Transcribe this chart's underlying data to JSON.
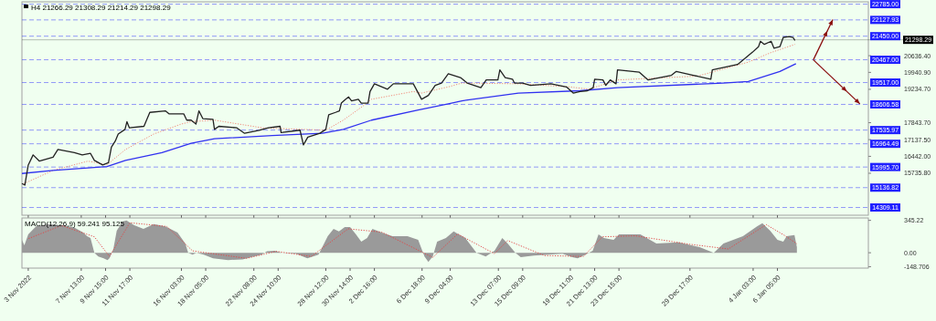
{
  "chart_data": [
    {
      "type": "line",
      "title": "H4 21266.29 21308.29 21214.29 21298.29",
      "tick_labels": "y",
      "xlim": [
        "2022-11-02T11:00",
        "2023-01-14T00:00"
      ],
      "xticks": [
        {
          "value": "2022-11-03T00:00",
          "label": null
        },
        {
          "value": "2022-11-07T13:00",
          "label": null
        },
        {
          "value": "2022-11-09T15:00",
          "label": null
        },
        {
          "value": "2022-11-11T17:00",
          "label": null
        },
        {
          "value": "2022-11-16T03:00",
          "label": null
        },
        {
          "value": "2022-11-18T05:00",
          "label": null
        },
        {
          "value": "2022-11-22T08:00",
          "label": null
        },
        {
          "value": "2022-11-24T10:00",
          "label": null
        },
        {
          "value": "2022-11-28T12:00",
          "label": null
        },
        {
          "value": "2022-11-30T14:00",
          "label": null
        },
        {
          "value": "2022-12-02T16:00",
          "label": null
        },
        {
          "value": "2022-12-06T18:00",
          "label": null
        },
        {
          "value": "2022-12-09T04:00",
          "label": null
        },
        {
          "value": "2022-12-13T07:00",
          "label": null
        },
        {
          "value": "2022-12-15T09:00",
          "label": null
        },
        {
          "value": "2022-12-19T11:00",
          "label": null
        },
        {
          "value": "2022-12-21T13:00",
          "label": null
        },
        {
          "value": "2022-12-23T15:00",
          "label": null
        },
        {
          "value": "2022-12-29T17:00",
          "label": null
        },
        {
          "value": "2023-01-04T03:00",
          "label": null
        },
        {
          "value": "2023-01-06T05:00",
          "label": null
        }
      ],
      "ylim": [
        13987,
        22882
      ],
      "yticks": [
        {
          "value": 20636.4,
          "label": "20636.40"
        },
        {
          "value": 19940.9,
          "label": "19940.90"
        },
        {
          "value": 19234.7,
          "label": "19234.70"
        },
        {
          "value": 17843.7,
          "label": "17843.70"
        },
        {
          "value": 17137.5,
          "label": "17137.50"
        },
        {
          "value": 16442,
          "label": "16442.00"
        },
        {
          "value": 15735.8,
          "label": "15735.80"
        }
      ],
      "ref_lines": [
        {
          "axis": "y",
          "value": 22785,
          "label": "22785.00",
          "color": "#2020ff",
          "line_style": "dashed"
        },
        {
          "axis": "y",
          "value": 22127.93,
          "label": "22127.93",
          "color": "#2020ff",
          "line_style": "dashed"
        },
        {
          "axis": "y",
          "value": 21450,
          "label": "21450.00",
          "color": "#2020ff",
          "line_style": "dashed"
        },
        {
          "axis": "y",
          "value": 21298.29,
          "label": "21298.29",
          "color": "#000000",
          "line_style": "solid"
        },
        {
          "axis": "y",
          "value": 20467,
          "label": "20467.00",
          "color": "#2020ff",
          "line_style": "dashed"
        },
        {
          "axis": "y",
          "value": 19517,
          "label": "19517.00",
          "color": "#2020ff",
          "line_style": "dashed"
        },
        {
          "axis": "y",
          "value": 18606.58,
          "label": "18606.58",
          "color": "#2020ff",
          "line_style": "dashed"
        },
        {
          "axis": "y",
          "value": 17535.97,
          "label": "17535.97",
          "color": "#2020ff",
          "line_style": "dashed"
        },
        {
          "axis": "y",
          "value": 16964.49,
          "label": "16964.49",
          "color": "#2020ff",
          "line_style": "dashed"
        },
        {
          "axis": "y",
          "value": 15995.7,
          "label": "15995.70",
          "color": "#2020ff",
          "line_style": "dashed"
        },
        {
          "axis": "y",
          "value": 15136.82,
          "label": "15136.82",
          "color": "#2020ff",
          "line_style": "dashed"
        },
        {
          "axis": "y",
          "value": 14309.11,
          "label": "14309.11",
          "color": "#2020ff",
          "line_style": "dashed"
        }
      ],
      "series": [
        {
          "color": "#f08878",
          "line_style": "dotted",
          "x": [
            "2022-11-02T12:00",
            "2022-11-05T03:00",
            "2022-11-08T03:00",
            "2022-11-09T18:00",
            "2022-11-10T05:00",
            "2022-11-11T08:00",
            "2022-11-13T18:00",
            "2022-11-16T03:00",
            "2022-11-16T23:00",
            "2022-11-18T23:00",
            "2022-11-23T02:00",
            "2022-11-26T14:00",
            "2022-11-28T12:00",
            "2022-11-30T00:00",
            "2022-12-01T16:00",
            "2022-12-02T10:00",
            "2022-12-06T00:00",
            "2022-12-06T17:00",
            "2022-12-09T00:00",
            "2022-12-10T04:00",
            "2022-12-15T00:00",
            "2022-12-19T10:00",
            "2022-12-21T01:00",
            "2022-12-23T12:00",
            "2022-12-30T09:00",
            "2023-01-03T17:00",
            "2023-01-05T14:00",
            "2023-01-07T17:00"
          ],
          "values": [
            15275,
            15855,
            16242,
            16081,
            16274,
            16726,
            17370,
            17789,
            17886,
            17950,
            17628,
            17564,
            17531,
            17950,
            18530,
            18821,
            19143,
            19078,
            19336,
            19497,
            19465,
            19336,
            19240,
            19626,
            19787,
            20368,
            20754,
            21109
          ]
        },
        {
          "color": "#3030f0",
          "line_style": "solid",
          "x": [
            "2022-11-02T11:00",
            "2022-11-05T03:00",
            "2022-11-09T18:00",
            "2022-11-11T08:00",
            "2022-11-14T11:00",
            "2022-11-16T23:00",
            "2022-11-18T23:00",
            "2022-11-23T22:00",
            "2022-11-28T05:00",
            "2022-11-30T00:00",
            "2022-12-02T10:00",
            "2022-12-06T10:00",
            "2022-12-09T00:00",
            "2022-12-10T04:00",
            "2022-12-15T00:00",
            "2022-12-20T07:00",
            "2022-12-23T12:00",
            "2023-01-01T13:00",
            "2023-01-03T17:00",
            "2023-01-06T10:00",
            "2023-01-07T19:00"
          ],
          "values": [
            15726,
            15855,
            16017,
            16274,
            16597,
            16983,
            17177,
            17306,
            17402,
            17564,
            17950,
            18369,
            18627,
            18756,
            19078,
            19175,
            19304,
            19497,
            19562,
            19981,
            20303
          ]
        },
        {
          "color": "#222222",
          "line_style": "solid",
          "x": [
            "2022-11-02T11:00",
            "2022-11-02T17:00",
            "2022-11-03T00:00",
            "2022-11-03T10:00",
            "2022-11-03T23:00",
            "2022-11-05T03:00",
            "2022-11-05T13:00",
            "2022-11-06T23:00",
            "2022-11-07T15:00",
            "2022-11-08T08:00",
            "2022-11-08T16:00",
            "2022-11-09T09:00",
            "2022-11-09T21:00",
            "2022-11-10T03:00",
            "2022-11-10T11:00",
            "2022-11-10T17:00",
            "2022-11-11T07:00",
            "2022-11-11T11:00",
            "2022-11-11T16:00",
            "2022-11-12T22:00",
            "2022-11-13T10:00",
            "2022-11-14T18:00",
            "2022-11-15T02:00",
            "2022-11-16T08:00",
            "2022-11-16T14:00",
            "2022-11-16T23:00",
            "2022-11-17T09:00",
            "2022-11-17T15:00",
            "2022-11-17T23:00",
            "2022-11-18T20:00",
            "2022-11-18T23:00",
            "2022-11-19T08:00",
            "2022-11-20T21:00",
            "2022-11-21T13:00",
            "2022-11-22T19:00",
            "2022-11-23T14:00",
            "2022-11-24T14:00",
            "2022-11-24T16:00",
            "2022-11-26T07:00",
            "2022-11-26T14:00",
            "2022-11-26T23:00",
            "2022-11-28T00:00",
            "2022-11-28T12:00",
            "2022-11-28T18:00",
            "2022-11-29T08:00",
            "2022-11-29T16:00",
            "2022-11-29T20:00",
            "2022-11-30T05:00",
            "2022-11-30T11:00",
            "2022-11-30T17:00",
            "2022-12-01T07:00",
            "2022-12-01T13:00",
            "2022-12-02T03:00",
            "2022-12-02T07:00",
            "2022-12-02T16:00",
            "2022-12-03T19:00",
            "2022-12-04T07:00",
            "2022-12-06T00:00",
            "2022-12-06T17:00",
            "2022-12-07T07:00",
            "2022-12-07T21:00",
            "2022-12-08T10:00",
            "2022-12-09T00:00",
            "2022-12-10T01:00",
            "2022-12-10T15:00",
            "2022-12-11T19:00",
            "2022-12-12T06:00",
            "2022-12-13T06:00",
            "2022-12-13T10:00",
            "2022-12-13T21:00",
            "2022-12-14T12:00",
            "2022-12-14T16:00",
            "2022-12-15T09:00",
            "2022-12-16T01:00",
            "2022-12-17T19:00",
            "2022-12-19T03:00",
            "2022-12-19T17:00",
            "2022-12-20T07:00",
            "2022-12-20T22:00",
            "2022-12-21T10:00",
            "2022-12-21T13:00",
            "2022-12-22T06:00",
            "2022-12-22T12:00",
            "2022-12-22T21:00",
            "2022-12-23T09:00",
            "2022-12-23T12:00",
            "2022-12-25T09:00",
            "2022-12-26T03:00",
            "2022-12-28T03:00",
            "2022-12-28T13:00",
            "2022-12-30T00:00",
            "2022-12-31T12:00",
            "2022-12-31T15:00",
            "2023-01-01T13:00",
            "2023-01-02T19:00",
            "2023-01-04T02:00",
            "2023-01-04T14:00",
            "2023-01-04T18:00",
            "2023-01-05T02:00",
            "2023-01-05T16:00",
            "2023-01-05T22:00",
            "2023-01-06T10:00",
            "2023-01-06T17:00",
            "2023-01-07T05:00",
            "2023-01-07T13:00",
            "2023-01-07T17:00"
          ],
          "values": [
            15307,
            15243,
            16081,
            16500,
            16242,
            16403,
            16726,
            16597,
            16500,
            16564,
            16274,
            16081,
            16178,
            16822,
            17080,
            17370,
            17564,
            17886,
            17628,
            17693,
            18273,
            18337,
            18208,
            18208,
            17950,
            17950,
            17789,
            18337,
            18015,
            17983,
            17564,
            17693,
            17628,
            17402,
            17531,
            17628,
            17693,
            17435,
            17531,
            16919,
            17241,
            17402,
            17564,
            18176,
            18273,
            18337,
            18659,
            18821,
            18917,
            18756,
            18821,
            18659,
            18659,
            19143,
            19465,
            19240,
            19465,
            19465,
            18821,
            18982,
            19401,
            19497,
            19884,
            19723,
            19497,
            19304,
            19626,
            19626,
            20045,
            19723,
            19659,
            19497,
            19497,
            19401,
            19465,
            19336,
            19078,
            19143,
            19175,
            19304,
            19659,
            19626,
            19401,
            19626,
            19465,
            20045,
            19949,
            19626,
            19820,
            19981,
            19820,
            19659,
            20045,
            20142,
            20271,
            20787,
            21012,
            21238,
            21109,
            21238,
            20948,
            21012,
            21399,
            21431,
            21399,
            21270
          ]
        }
      ]
    },
    {
      "type": "area",
      "title": "MACD(12,26,9) 59.241 95.125",
      "xlim": [
        "2022-11-02T11:00",
        "2023-01-14T00:00"
      ],
      "xticks": [
        {
          "value": "2022-11-03T00:00",
          "label": "3 Nov 2022"
        },
        {
          "value": "2022-11-07T13:00",
          "label": "7 Nov 13:00"
        },
        {
          "value": "2022-11-09T15:00",
          "label": "9 Nov 15:00"
        },
        {
          "value": "2022-11-11T17:00",
          "label": "11 Nov 17:00"
        },
        {
          "value": "2022-11-16T03:00",
          "label": "16 Nov 03:00"
        },
        {
          "value": "2022-11-18T05:00",
          "label": "18 Nov 05:00"
        },
        {
          "value": "2022-11-22T08:00",
          "label": "22 Nov 08:00"
        },
        {
          "value": "2022-11-24T10:00",
          "label": "24 Nov 10:00"
        },
        {
          "value": "2022-11-28T12:00",
          "label": "28 Nov 12:00"
        },
        {
          "value": "2022-11-30T14:00",
          "label": "30 Nov 14:00"
        },
        {
          "value": "2022-12-02T16:00",
          "label": "2 Dec 16:00"
        },
        {
          "value": "2022-12-06T18:00",
          "label": "6 Dec 18:00"
        },
        {
          "value": "2022-12-09T04:00",
          "label": "9 Dec 04:00"
        },
        {
          "value": "2022-12-13T07:00",
          "label": "13 Dec 07:00"
        },
        {
          "value": "2022-12-15T09:00",
          "label": "15 Dec 09:00"
        },
        {
          "value": "2022-12-19T11:00",
          "label": "19 Dec 11:00"
        },
        {
          "value": "2022-12-21T13:00",
          "label": "21 Dec 13:00"
        },
        {
          "value": "2022-12-23T15:00",
          "label": "23 Dec 15:00"
        },
        {
          "value": "2022-12-29T17:00",
          "label": "29 Dec 17:00"
        },
        {
          "value": "2023-01-04T03:00",
          "label": "4 Jan 03:00"
        },
        {
          "value": "2023-01-06T05:00",
          "label": "6 Jan 05:00"
        }
      ],
      "ylim": [
        -164,
        371
      ],
      "yticks": [
        {
          "value": 345.22,
          "label": "345.22"
        },
        {
          "value": 0,
          "label": "0.00"
        },
        {
          "value": -148.706,
          "label": "-148.706"
        }
      ],
      "series": [
        {
          "color": "#9a9a9a",
          "x": [
            "2022-11-02T11:00",
            "2022-11-02T16:00",
            "2022-11-03T00:00",
            "2022-11-03T16:00",
            "2022-11-04T19:00",
            "2022-11-05T20:00",
            "2022-11-06T21:00",
            "2022-11-07T17:00",
            "2022-11-08T01:00",
            "2022-11-08T08:00",
            "2022-11-08T16:00",
            "2022-11-09T00:00",
            "2022-11-09T11:00",
            "2022-11-09T19:00",
            "2022-11-09T23:00",
            "2022-11-10T07:00",
            "2022-11-10T14:00",
            "2022-11-11T02:00",
            "2022-11-11T10:00",
            "2022-11-12T02:00",
            "2022-11-12T21:00",
            "2022-11-13T18:00",
            "2022-11-14T18:00",
            "2022-11-15T19:00",
            "2022-11-16T11:00",
            "2022-11-16T17:00",
            "2022-11-17T02:00",
            "2022-11-17T10:00",
            "2022-11-18T01:00",
            "2022-11-18T20:00",
            "2022-11-20T03:00",
            "2022-11-21T09:00",
            "2022-11-22T08:00",
            "2022-11-23T00:00",
            "2022-11-23T11:00",
            "2022-11-24T03:00",
            "2022-11-24T18:00",
            "2022-11-25T23:00",
            "2022-11-26T22:00",
            "2022-11-27T21:00",
            "2022-11-28T16:00",
            "2022-11-29T04:00",
            "2022-11-29T15:00",
            "2022-11-30T03:00",
            "2022-11-30T14:00",
            "2022-12-01T02:00",
            "2022-12-01T13:00",
            "2022-12-02T01:00",
            "2022-12-02T12:00",
            "2022-12-03T07:00",
            "2022-12-04T05:00",
            "2022-12-05T12:00",
            "2022-12-06T10:00",
            "2022-12-06T23:00",
            "2022-12-07T07:00",
            "2022-12-07T16:00",
            "2022-12-08T01:00",
            "2022-12-08T19:00",
            "2022-12-09T11:00",
            "2022-12-10T11:00",
            "2022-12-11T10:00",
            "2022-12-12T05:00",
            "2022-12-12T23:00",
            "2022-12-13T15:00",
            "2022-12-14T02:00",
            "2022-12-14T18:00",
            "2022-12-15T05:00",
            "2022-12-16T08:00",
            "2022-12-17T14:00",
            "2022-12-18T19:00",
            "2022-12-19T15:00",
            "2022-12-20T02:00",
            "2022-12-20T18:00",
            "2022-12-21T09:00",
            "2022-12-21T21:00",
            "2022-12-22T08:00",
            "2022-12-23T04:00",
            "2022-12-23T15:00",
            "2022-12-25T11:00",
            "2022-12-26T20:00",
            "2022-12-28T18:00",
            "2022-12-30T13:00",
            "2022-12-31T18:00",
            "2023-01-01T14:00",
            "2023-01-03T06:00",
            "2023-01-04T11:00",
            "2023-01-04T22:00",
            "2023-01-05T14:00",
            "2023-01-06T05:00",
            "2023-01-06T17:00",
            "2023-01-07T00:00",
            "2023-01-07T16:00",
            "2023-01-07T21:00"
          ],
          "values": [
            137,
            78,
            196,
            282,
            306,
            294,
            274,
            216,
            176,
            157,
            0,
            -39,
            -59,
            -78,
            -59,
            39,
            235,
            333,
            345,
            294,
            255,
            306,
            282,
            216,
            98,
            0,
            -20,
            0,
            -20,
            -59,
            -78,
            -71,
            -39,
            -20,
            16,
            20,
            0,
            -12,
            -59,
            -20,
            176,
            255,
            227,
            274,
            274,
            196,
            118,
            157,
            255,
            216,
            176,
            176,
            137,
            -39,
            -98,
            -39,
            118,
            157,
            227,
            157,
            0,
            -39,
            20,
            157,
            98,
            0,
            -47,
            -31,
            -20,
            -12,
            -47,
            -59,
            -20,
            20,
            196,
            157,
            137,
            196,
            196,
            98,
            110,
            59,
            0,
            98,
            176,
            282,
            314,
            235,
            137,
            118,
            176,
            188,
            59
          ]
        },
        {
          "type": "line",
          "color": "#e04848",
          "line_style": "dotted",
          "x": [
            "2022-11-03T00:00",
            "2022-11-05T20:00",
            "2022-11-08T16:00",
            "2022-11-09T23:00",
            "2022-11-11T17:00",
            "2022-11-14T21:00",
            "2022-11-17T02:00",
            "2022-11-21T17:00",
            "2022-11-24T06:00",
            "2022-11-27T06:00",
            "2022-11-30T10:00",
            "2022-12-03T07:00",
            "2022-12-07T16:00",
            "2022-12-09T19:00",
            "2022-12-12T23:00",
            "2022-12-14T02:00",
            "2022-12-17T06:00",
            "2022-12-20T14:00",
            "2022-12-22T05:00",
            "2022-12-25T01:00",
            "2022-12-29T17:00",
            "2023-01-02T00:00",
            "2023-01-05T06:00",
            "2023-01-06T21:00",
            "2023-01-07T21:00"
          ],
          "values": [
            150,
            290,
            170,
            -40,
            320,
            280,
            20,
            -60,
            15,
            -40,
            255,
            220,
            -50,
            200,
            -10,
            130,
            -30,
            -40,
            170,
            180,
            90,
            40,
            300,
            180,
            95
          ]
        }
      ]
    }
  ]
}
